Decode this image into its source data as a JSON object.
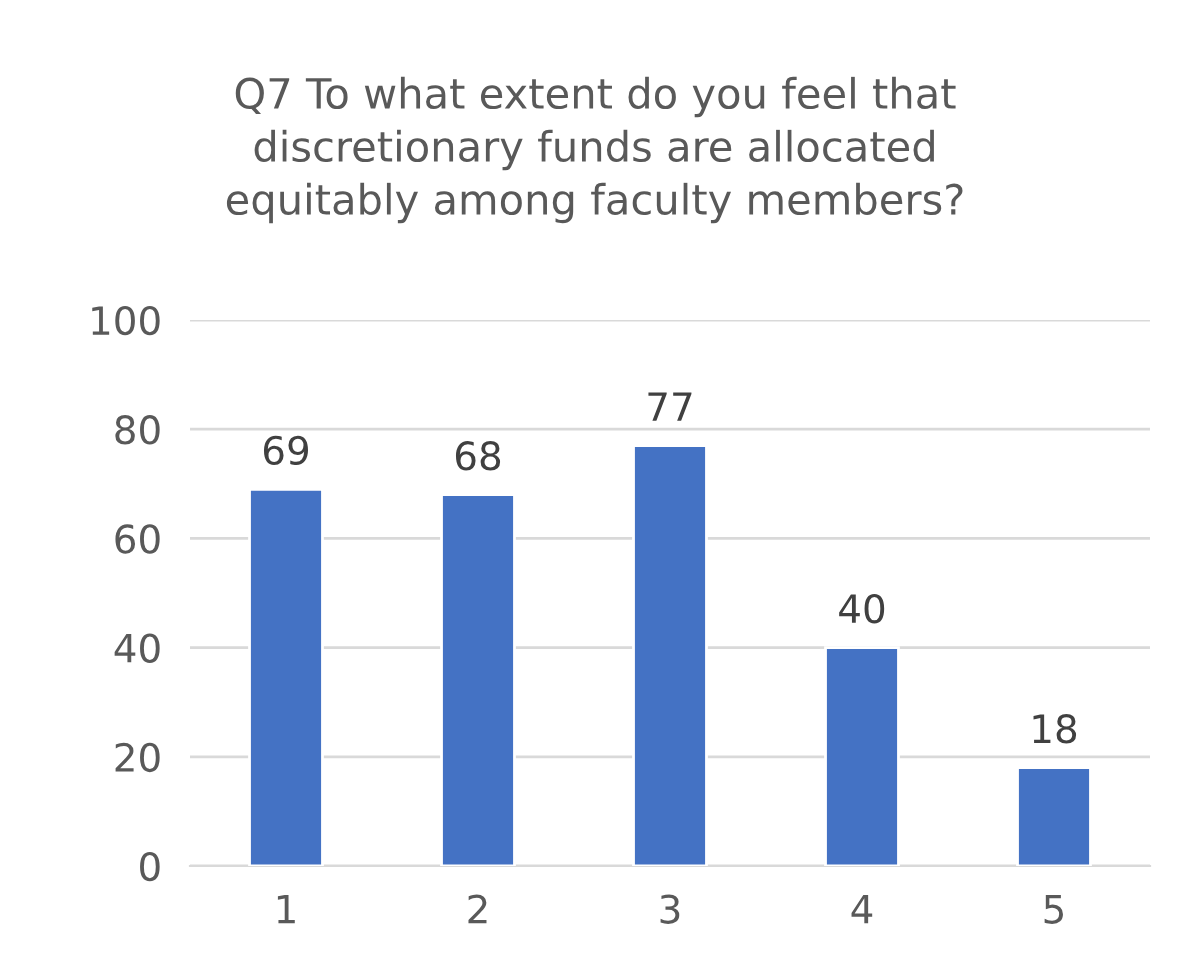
{
  "chart_data": {
    "type": "bar",
    "title": "Q7 To what extent do you feel that\ndiscretionary funds are allocated\nequitably among faculty members?",
    "categories": [
      "1",
      "2",
      "3",
      "4",
      "5"
    ],
    "values": [
      69,
      68,
      77,
      40,
      18
    ],
    "color": "#4472c4",
    "ylim": [
      0,
      100
    ],
    "yticks": [
      0,
      20,
      40,
      60,
      80,
      100
    ],
    "grid": "y",
    "data_labels": true
  }
}
